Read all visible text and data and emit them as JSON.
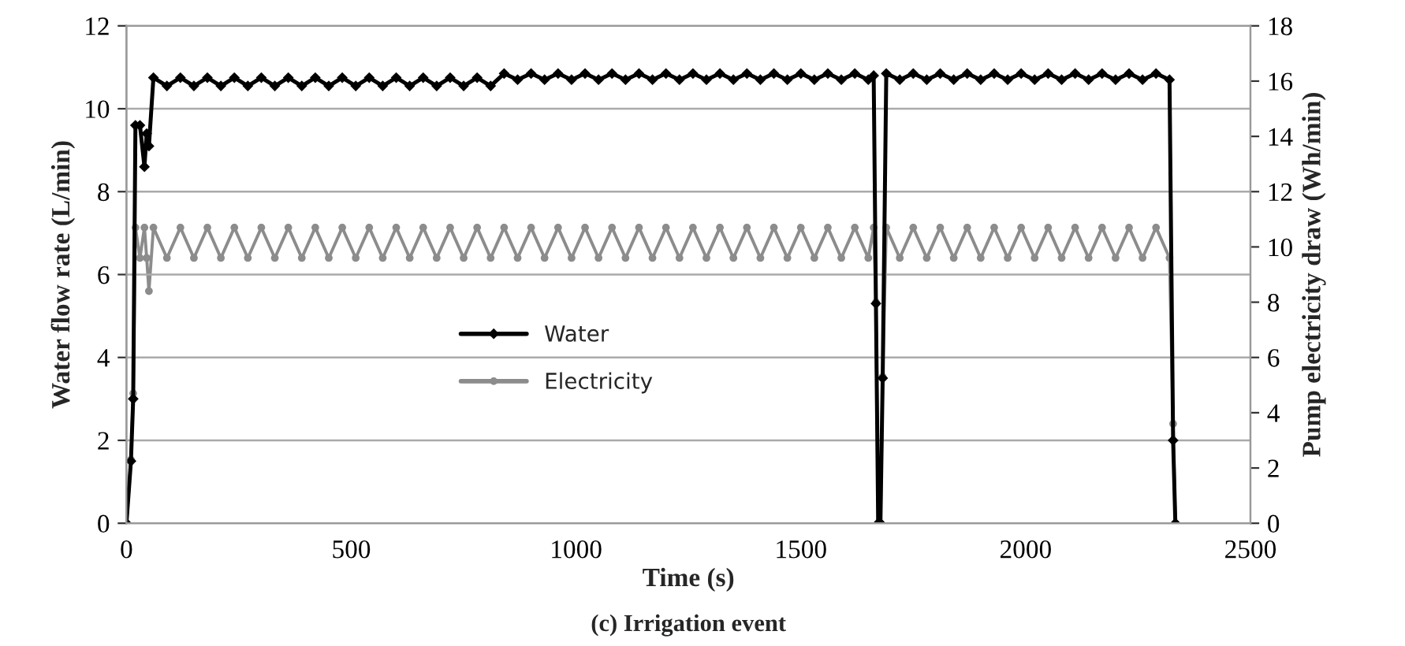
{
  "chart_data": {
    "type": "line",
    "xlabel": "Time (s)",
    "ylabel": "Water flow rate (L/min)",
    "y2label": "Pump electricity draw (Wh/min)",
    "annotations": [
      "(c) Irrigation event"
    ],
    "x": [
      0,
      10,
      15,
      20,
      30,
      40,
      45,
      50,
      60,
      90,
      120,
      150,
      180,
      210,
      240,
      270,
      300,
      330,
      360,
      390,
      420,
      450,
      480,
      510,
      540,
      570,
      600,
      630,
      660,
      690,
      720,
      750,
      780,
      810,
      840,
      870,
      900,
      930,
      960,
      990,
      1020,
      1050,
      1080,
      1110,
      1140,
      1170,
      1200,
      1230,
      1260,
      1290,
      1320,
      1350,
      1380,
      1410,
      1440,
      1470,
      1500,
      1530,
      1560,
      1590,
      1620,
      1650,
      1662,
      1667,
      1672,
      1677,
      1682,
      1690,
      1720,
      1750,
      1780,
      1810,
      1840,
      1870,
      1900,
      1930,
      1960,
      1990,
      2020,
      2050,
      2080,
      2110,
      2140,
      2170,
      2200,
      2230,
      2260,
      2290,
      2320,
      2328,
      2333
    ],
    "series": [
      {
        "name": "Water",
        "color": "#000000",
        "marker": "diamond",
        "values": [
          0,
          1.5,
          3.0,
          9.6,
          9.6,
          8.6,
          9.4,
          9.1,
          10.75,
          10.55,
          10.75,
          10.55,
          10.75,
          10.55,
          10.75,
          10.55,
          10.75,
          10.55,
          10.75,
          10.55,
          10.75,
          10.55,
          10.75,
          10.55,
          10.75,
          10.55,
          10.75,
          10.55,
          10.75,
          10.55,
          10.75,
          10.55,
          10.75,
          10.55,
          10.85,
          10.7,
          10.85,
          10.7,
          10.85,
          10.7,
          10.85,
          10.7,
          10.85,
          10.7,
          10.85,
          10.7,
          10.85,
          10.7,
          10.85,
          10.7,
          10.85,
          10.7,
          10.85,
          10.7,
          10.85,
          10.7,
          10.85,
          10.7,
          10.85,
          10.7,
          10.85,
          10.7,
          10.8,
          5.3,
          0,
          0,
          3.5,
          10.85,
          10.7,
          10.85,
          10.7,
          10.85,
          10.7,
          10.85,
          10.7,
          10.85,
          10.7,
          10.85,
          10.7,
          10.85,
          10.7,
          10.85,
          10.7,
          10.85,
          10.7,
          10.85,
          10.7,
          10.85,
          10.7,
          2.0,
          0
        ]
      },
      {
        "name": "Electricity",
        "color": "#8c8c8c",
        "marker": "circle",
        "axis": "y2",
        "values": [
          0,
          2.3,
          4.7,
          10.7,
          9.6,
          10.7,
          9.6,
          8.4,
          10.7,
          9.6,
          10.7,
          9.6,
          10.7,
          9.6,
          10.7,
          9.6,
          10.7,
          9.6,
          10.7,
          9.6,
          10.7,
          9.6,
          10.7,
          9.6,
          10.7,
          9.6,
          10.7,
          9.6,
          10.7,
          9.6,
          10.7,
          9.6,
          10.7,
          9.6,
          10.7,
          9.6,
          10.7,
          9.6,
          10.7,
          9.6,
          10.7,
          9.6,
          10.7,
          9.6,
          10.7,
          9.6,
          10.7,
          9.6,
          10.7,
          9.6,
          10.7,
          9.6,
          10.7,
          9.6,
          10.7,
          9.6,
          10.7,
          9.6,
          10.7,
          9.6,
          10.7,
          9.6,
          10.7,
          8.0,
          0,
          0,
          5.3,
          10.7,
          9.6,
          10.7,
          9.6,
          10.7,
          9.6,
          10.7,
          9.6,
          10.7,
          9.6,
          10.7,
          9.6,
          10.7,
          9.6,
          10.7,
          9.6,
          10.7,
          9.6,
          10.7,
          9.6,
          10.7,
          9.6,
          3.6,
          0
        ]
      }
    ],
    "xlim": [
      0,
      2500
    ],
    "xticks": [
      0,
      500,
      1000,
      1500,
      2000,
      2500
    ],
    "ylim": [
      0,
      12
    ],
    "yticks": [
      0,
      2,
      4,
      6,
      8,
      10,
      12
    ],
    "y2lim": [
      0,
      18
    ],
    "y2ticks": [
      0,
      2,
      4,
      6,
      8,
      10,
      12,
      14,
      16,
      18
    ],
    "grid": "y",
    "legend": "center",
    "line_style": "solid"
  }
}
